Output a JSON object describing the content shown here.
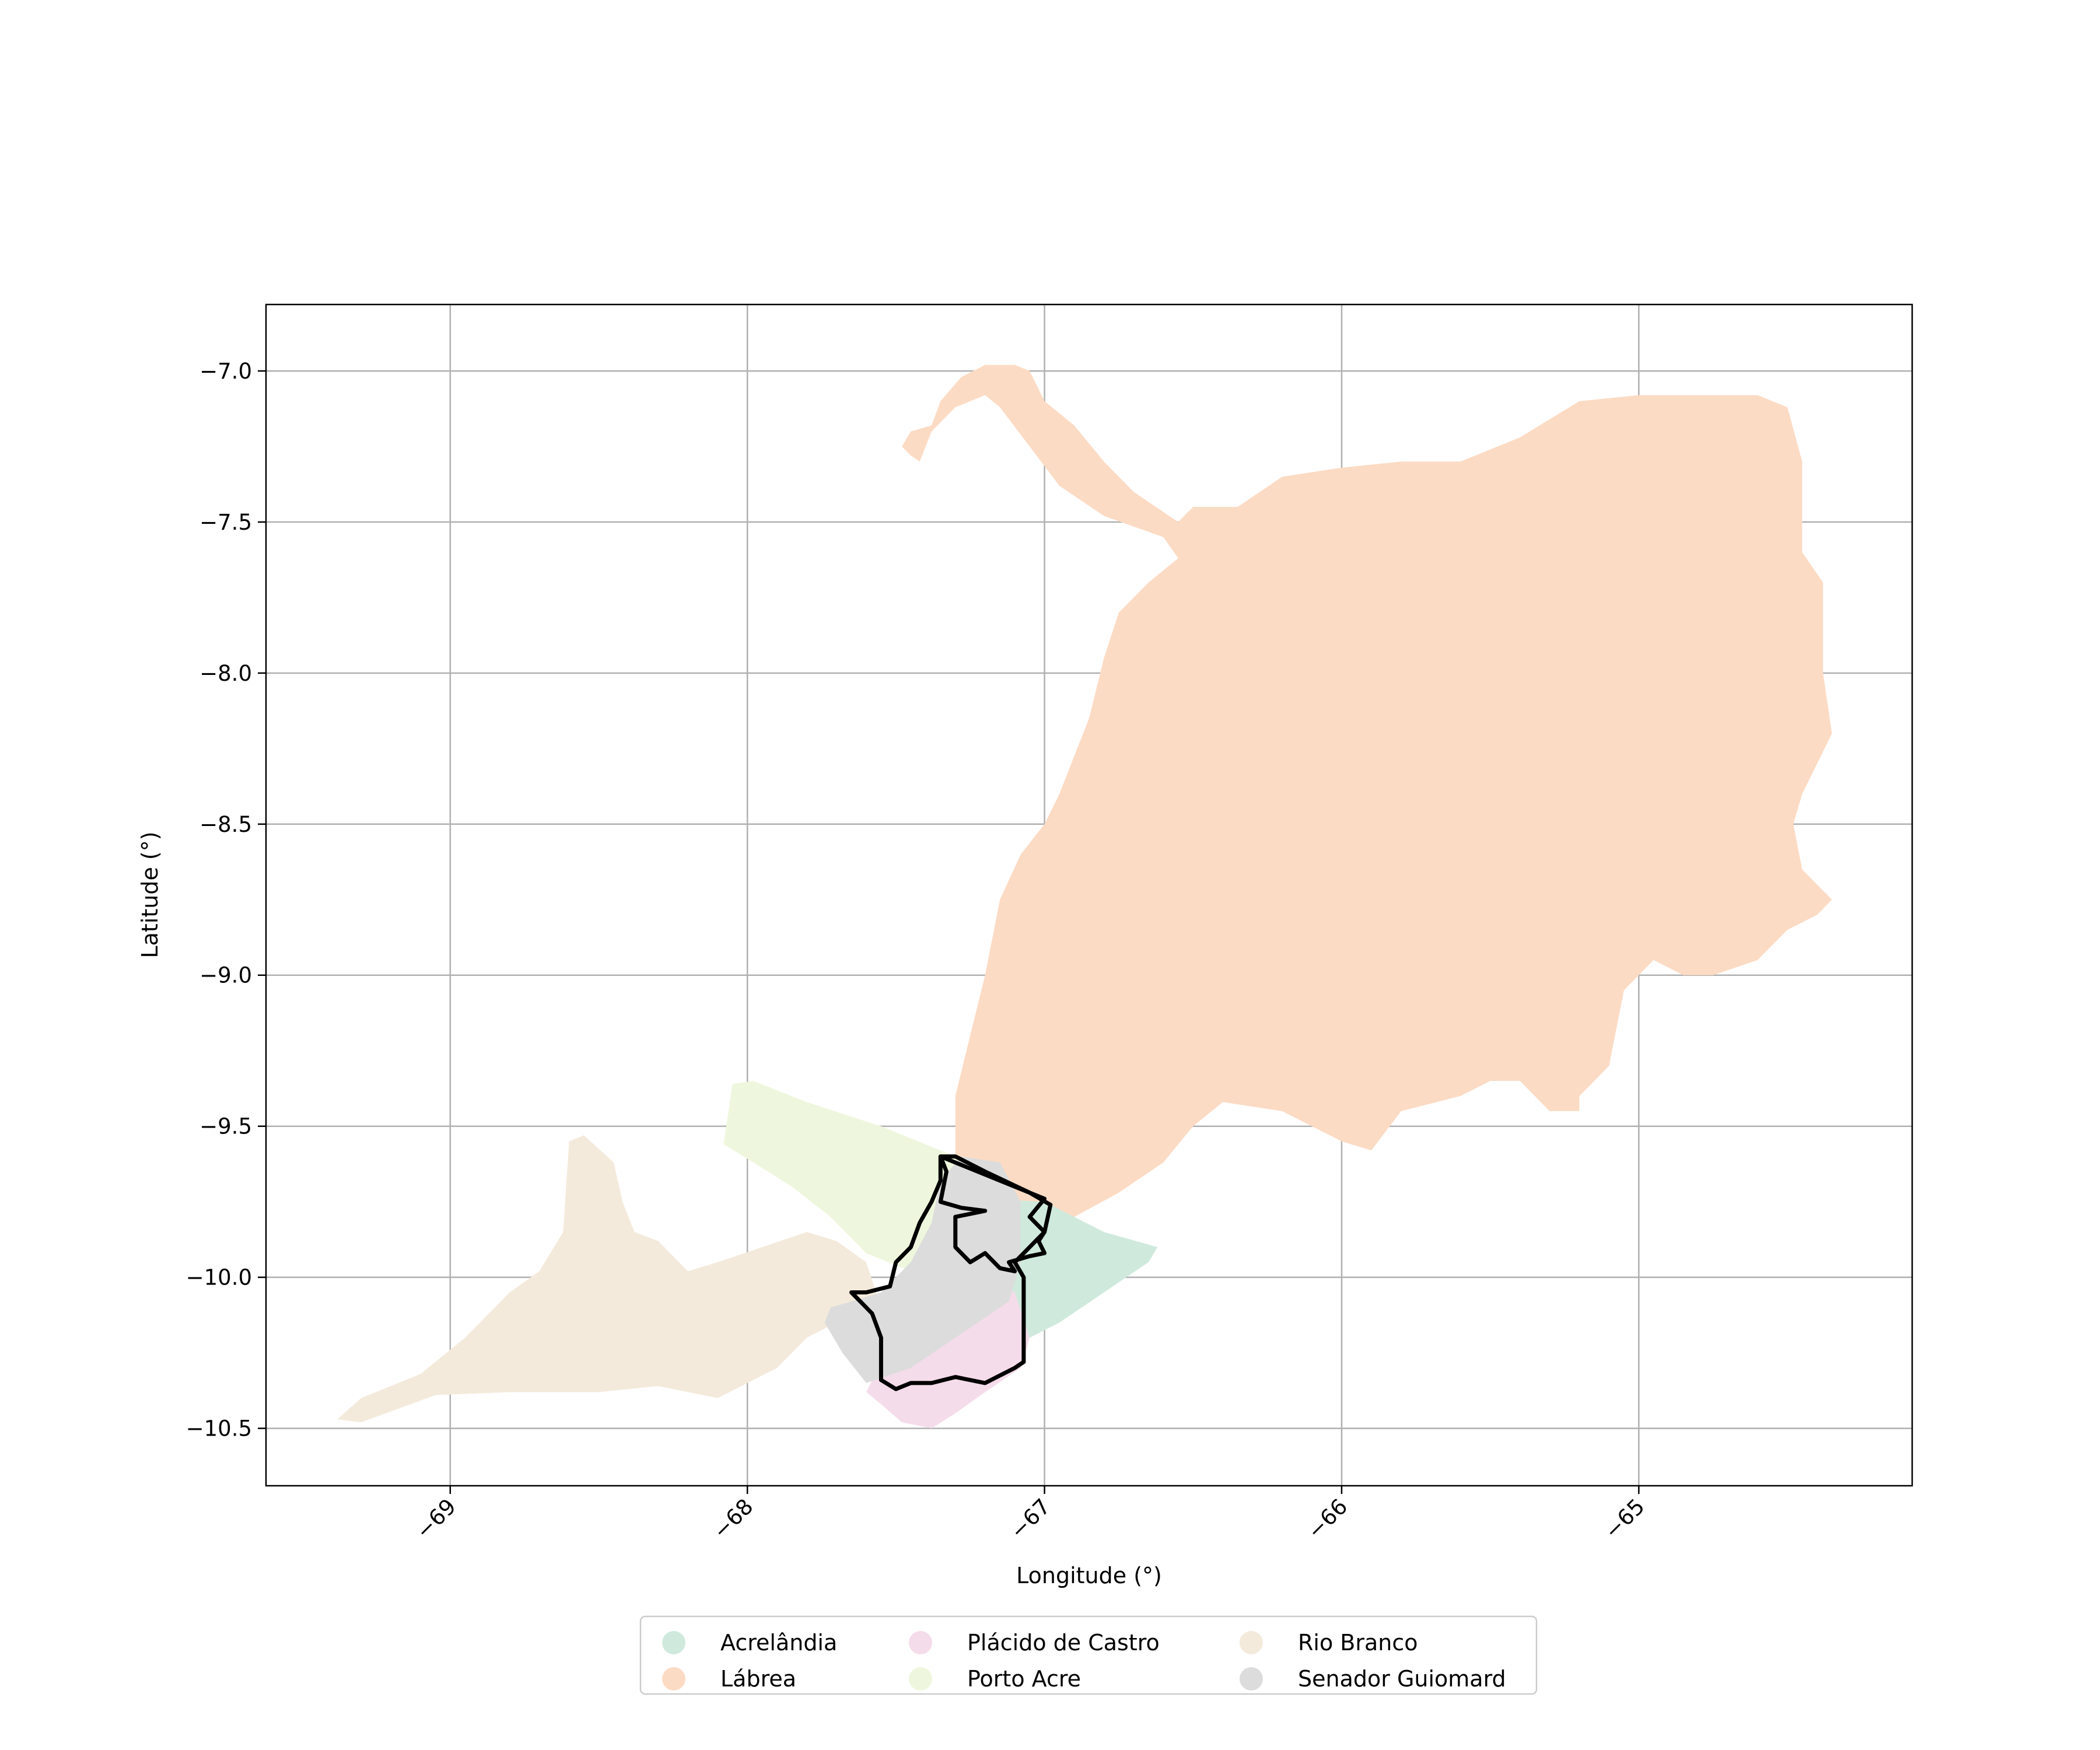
{
  "map": {
    "xlabel": "Longitude (°)",
    "ylabel": "Latitude (°)",
    "xlim": [
      -69.62,
      -64.08
    ],
    "ylim": [
      -10.69,
      -6.78
    ],
    "xticks": [
      -69,
      -68,
      -67,
      -66,
      -65
    ],
    "xtick_labels": [
      "−69",
      "−68",
      "−67",
      "−66",
      "−65"
    ],
    "yticks": [
      -7.0,
      -7.5,
      -8.0,
      -8.5,
      -9.0,
      -9.5,
      -10.0,
      -10.5
    ],
    "ytick_labels": [
      "−7.0",
      "−7.5",
      "−8.0",
      "−8.5",
      "−9.0",
      "−9.5",
      "−10.0",
      "−10.5"
    ],
    "grid": true,
    "legend_placement": "bottom-center, below plot, 3 columns",
    "highlighted_region": "Senador Guiomard",
    "regions": [
      {
        "name": "Lábrea",
        "color": "#fcdbc4",
        "outline": [
          [
            -67.45,
            -7.28
          ],
          [
            -67.48,
            -7.25
          ],
          [
            -67.45,
            -7.2
          ],
          [
            -67.38,
            -7.18
          ],
          [
            -67.35,
            -7.1
          ],
          [
            -67.28,
            -7.02
          ],
          [
            -67.2,
            -6.98
          ],
          [
            -67.1,
            -6.98
          ],
          [
            -67.05,
            -7.0
          ],
          [
            -67.0,
            -7.1
          ],
          [
            -66.9,
            -7.18
          ],
          [
            -66.8,
            -7.3
          ],
          [
            -66.7,
            -7.4
          ],
          [
            -66.55,
            -7.5
          ],
          [
            -66.5,
            -7.45
          ],
          [
            -66.35,
            -7.45
          ],
          [
            -66.2,
            -7.35
          ],
          [
            -66.0,
            -7.32
          ],
          [
            -65.8,
            -7.3
          ],
          [
            -65.6,
            -7.3
          ],
          [
            -65.4,
            -7.22
          ],
          [
            -65.2,
            -7.1
          ],
          [
            -65.0,
            -7.08
          ],
          [
            -64.6,
            -7.08
          ],
          [
            -64.5,
            -7.12
          ],
          [
            -64.45,
            -7.3
          ],
          [
            -64.45,
            -7.6
          ],
          [
            -64.38,
            -7.7
          ],
          [
            -64.38,
            -8.0
          ],
          [
            -64.35,
            -8.2
          ],
          [
            -64.45,
            -8.4
          ],
          [
            -64.48,
            -8.5
          ],
          [
            -64.45,
            -8.65
          ],
          [
            -64.35,
            -8.75
          ],
          [
            -64.4,
            -8.8
          ],
          [
            -64.5,
            -8.85
          ],
          [
            -64.6,
            -8.95
          ],
          [
            -64.75,
            -9.0
          ],
          [
            -64.85,
            -9.0
          ],
          [
            -64.95,
            -8.95
          ],
          [
            -65.05,
            -9.05
          ],
          [
            -65.1,
            -9.3
          ],
          [
            -65.2,
            -9.4
          ],
          [
            -65.2,
            -9.45
          ],
          [
            -65.3,
            -9.45
          ],
          [
            -65.4,
            -9.35
          ],
          [
            -65.5,
            -9.35
          ],
          [
            -65.6,
            -9.4
          ],
          [
            -65.8,
            -9.45
          ],
          [
            -65.9,
            -9.58
          ],
          [
            -66.0,
            -9.55
          ],
          [
            -66.1,
            -9.5
          ],
          [
            -66.2,
            -9.45
          ],
          [
            -66.4,
            -9.42
          ],
          [
            -66.5,
            -9.5
          ],
          [
            -66.6,
            -9.62
          ],
          [
            -66.75,
            -9.72
          ],
          [
            -66.9,
            -9.8
          ],
          [
            -67.05,
            -9.8
          ],
          [
            -67.2,
            -9.72
          ],
          [
            -67.3,
            -9.6
          ],
          [
            -67.3,
            -9.4
          ],
          [
            -67.25,
            -9.2
          ],
          [
            -67.2,
            -9.0
          ],
          [
            -67.15,
            -8.75
          ],
          [
            -67.08,
            -8.6
          ],
          [
            -67.0,
            -8.5
          ],
          [
            -66.95,
            -8.4
          ],
          [
            -66.85,
            -8.15
          ],
          [
            -66.8,
            -7.95
          ],
          [
            -66.75,
            -7.8
          ],
          [
            -66.65,
            -7.7
          ],
          [
            -66.55,
            -7.62
          ],
          [
            -66.6,
            -7.55
          ],
          [
            -66.8,
            -7.48
          ],
          [
            -66.95,
            -7.38
          ],
          [
            -67.05,
            -7.25
          ],
          [
            -67.15,
            -7.12
          ],
          [
            -67.2,
            -7.08
          ],
          [
            -67.3,
            -7.12
          ],
          [
            -67.38,
            -7.2
          ],
          [
            -67.42,
            -7.3
          ]
        ]
      },
      {
        "name": "Rio Branco",
        "color": "#f4eadb",
        "outline": [
          [
            -69.38,
            -10.47
          ],
          [
            -69.3,
            -10.4
          ],
          [
            -69.1,
            -10.32
          ],
          [
            -68.95,
            -10.2
          ],
          [
            -68.8,
            -10.05
          ],
          [
            -68.7,
            -9.98
          ],
          [
            -68.62,
            -9.85
          ],
          [
            -68.6,
            -9.55
          ],
          [
            -68.55,
            -9.53
          ],
          [
            -68.45,
            -9.62
          ],
          [
            -68.42,
            -9.75
          ],
          [
            -68.38,
            -9.85
          ],
          [
            -68.3,
            -9.88
          ],
          [
            -68.2,
            -9.98
          ],
          [
            -68.1,
            -9.95
          ],
          [
            -67.95,
            -9.9
          ],
          [
            -67.8,
            -9.85
          ],
          [
            -67.7,
            -9.88
          ],
          [
            -67.6,
            -9.95
          ],
          [
            -67.55,
            -10.1
          ],
          [
            -67.7,
            -10.15
          ],
          [
            -67.8,
            -10.2
          ],
          [
            -67.9,
            -10.3
          ],
          [
            -68.0,
            -10.35
          ],
          [
            -68.1,
            -10.4
          ],
          [
            -68.2,
            -10.38
          ],
          [
            -68.3,
            -10.36
          ],
          [
            -68.5,
            -10.38
          ],
          [
            -68.8,
            -10.38
          ],
          [
            -69.05,
            -10.39
          ],
          [
            -69.3,
            -10.48
          ]
        ]
      },
      {
        "name": "Porto Acre",
        "color": "#eef7dd",
        "outline": [
          [
            -68.08,
            -9.56
          ],
          [
            -68.05,
            -9.36
          ],
          [
            -67.98,
            -9.35
          ],
          [
            -67.8,
            -9.42
          ],
          [
            -67.55,
            -9.5
          ],
          [
            -67.35,
            -9.58
          ],
          [
            -67.22,
            -9.63
          ],
          [
            -67.12,
            -9.72
          ],
          [
            -67.15,
            -9.85
          ],
          [
            -67.3,
            -9.9
          ],
          [
            -67.45,
            -9.98
          ],
          [
            -67.6,
            -9.92
          ],
          [
            -67.72,
            -9.8
          ],
          [
            -67.85,
            -9.7
          ],
          [
            -67.98,
            -9.62
          ]
        ]
      },
      {
        "name": "Acrelândia",
        "color": "#cfeadd",
        "outline": [
          [
            -67.2,
            -9.74
          ],
          [
            -67.0,
            -9.75
          ],
          [
            -66.8,
            -9.85
          ],
          [
            -66.62,
            -9.9
          ],
          [
            -66.65,
            -9.95
          ],
          [
            -66.8,
            -10.05
          ],
          [
            -66.95,
            -10.15
          ],
          [
            -67.05,
            -10.2
          ],
          [
            -67.15,
            -10.22
          ],
          [
            -67.25,
            -10.1
          ],
          [
            -67.3,
            -9.9
          ]
        ]
      },
      {
        "name": "Plácido de Castro",
        "color": "#f5dcea",
        "outline": [
          [
            -67.55,
            -10.42
          ],
          [
            -67.48,
            -10.48
          ],
          [
            -67.38,
            -10.5
          ],
          [
            -67.3,
            -10.45
          ],
          [
            -67.2,
            -10.38
          ],
          [
            -67.08,
            -10.3
          ],
          [
            -67.05,
            -10.2
          ],
          [
            -67.1,
            -10.05
          ],
          [
            -67.2,
            -10.0
          ],
          [
            -67.35,
            -10.05
          ],
          [
            -67.45,
            -10.15
          ],
          [
            -67.55,
            -10.28
          ],
          [
            -67.6,
            -10.38
          ]
        ]
      },
      {
        "name": "Senador Guiomard",
        "color": "#dcdcdc",
        "outline": [
          [
            -67.72,
            -10.1
          ],
          [
            -67.65,
            -10.08
          ],
          [
            -67.55,
            -10.05
          ],
          [
            -67.45,
            -9.95
          ],
          [
            -67.38,
            -9.82
          ],
          [
            -67.35,
            -9.68
          ],
          [
            -67.28,
            -9.6
          ],
          [
            -67.15,
            -9.62
          ],
          [
            -67.08,
            -9.75
          ],
          [
            -67.08,
            -9.95
          ],
          [
            -67.12,
            -10.08
          ],
          [
            -67.3,
            -10.2
          ],
          [
            -67.45,
            -10.3
          ],
          [
            -67.6,
            -10.35
          ],
          [
            -67.68,
            -10.25
          ],
          [
            -67.74,
            -10.15
          ]
        ]
      }
    ],
    "highlight_outline": [
      [
        -67.35,
        -9.6
      ],
      [
        -67.33,
        -9.65
      ],
      [
        -67.35,
        -9.75
      ],
      [
        -67.28,
        -9.77
      ],
      [
        -67.2,
        -9.78
      ],
      [
        -67.3,
        -9.8
      ],
      [
        -67.3,
        -9.9
      ],
      [
        -67.25,
        -9.95
      ],
      [
        -67.2,
        -9.92
      ],
      [
        -67.15,
        -9.97
      ],
      [
        -67.1,
        -9.98
      ],
      [
        -67.12,
        -9.95
      ],
      [
        -67.05,
        -9.93
      ],
      [
        -67.0,
        -9.92
      ],
      [
        -67.02,
        -9.88
      ],
      [
        -67.0,
        -9.85
      ],
      [
        -66.98,
        -9.76
      ],
      [
        -67.05,
        -9.72
      ],
      [
        -67.2,
        -9.65
      ],
      [
        -67.3,
        -9.6
      ],
      [
        -67.35,
        -9.6
      ],
      [
        -67.35,
        -9.68
      ],
      [
        -67.38,
        -9.75
      ],
      [
        -67.42,
        -9.82
      ],
      [
        -67.45,
        -9.9
      ],
      [
        -67.5,
        -9.95
      ],
      [
        -67.52,
        -10.03
      ],
      [
        -67.6,
        -10.05
      ],
      [
        -67.65,
        -10.05
      ],
      [
        -67.62,
        -10.08
      ],
      [
        -67.58,
        -10.12
      ],
      [
        -67.55,
        -10.2
      ],
      [
        -67.55,
        -10.28
      ],
      [
        -67.55,
        -10.34
      ],
      [
        -67.5,
        -10.37
      ],
      [
        -67.45,
        -10.35
      ],
      [
        -67.38,
        -10.35
      ],
      [
        -67.3,
        -10.33
      ],
      [
        -67.2,
        -10.35
      ],
      [
        -67.1,
        -10.3
      ],
      [
        -67.07,
        -10.28
      ],
      [
        -67.07,
        -10.0
      ],
      [
        -67.1,
        -9.95
      ],
      [
        -67.0,
        -9.85
      ],
      [
        -67.05,
        -9.8
      ],
      [
        -67.0,
        -9.74
      ],
      [
        -67.35,
        -9.6
      ]
    ]
  },
  "legend": {
    "entries": [
      {
        "label": "Acrelândia",
        "color": "#cfeadd"
      },
      {
        "label": "Lábrea",
        "color": "#fcdbc4"
      },
      {
        "label": "Plácido de Castro",
        "color": "#f5dcea"
      },
      {
        "label": "Porto Acre",
        "color": "#eef7dd"
      },
      {
        "label": "Rio Branco",
        "color": "#f4eadb"
      },
      {
        "label": "Senador Guiomard",
        "color": "#dcdcdc"
      }
    ]
  }
}
